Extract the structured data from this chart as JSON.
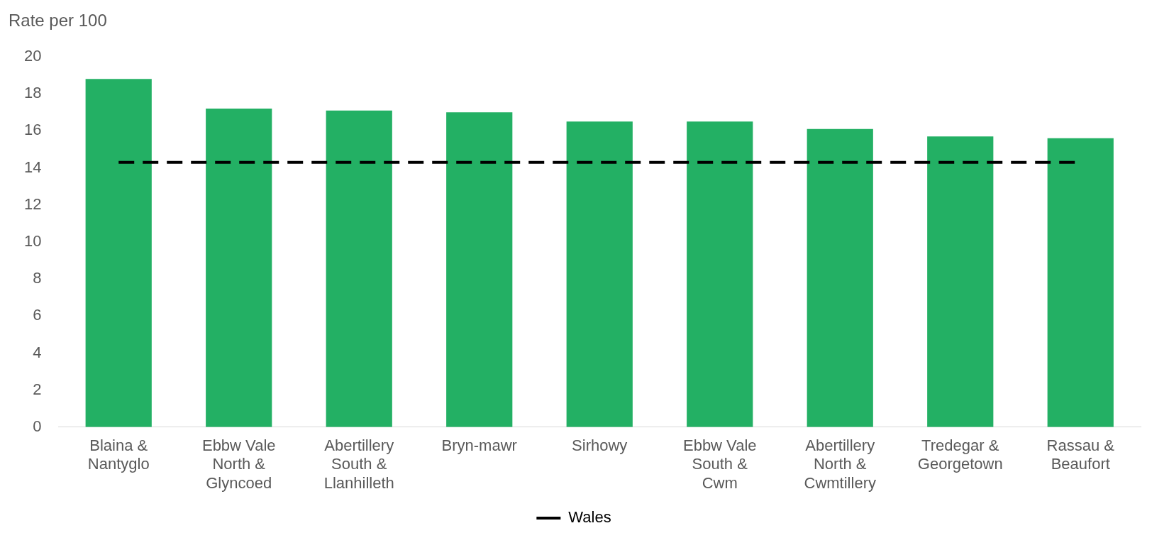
{
  "chart_data": {
    "type": "bar",
    "ylabel": "Rate per 100",
    "categories": [
      "Blaina & Nantyglo",
      "Ebbw Vale North & Glyncoed",
      "Abertillery South & Llanhilleth",
      "Bryn-mawr",
      "Sirhowy",
      "Ebbw Vale South & Cwm",
      "Abertillery North & Cwmtillery",
      "Tredegar & Georgetown",
      "Rassau & Beaufort"
    ],
    "series": [
      {
        "color": "#23b064",
        "values": [
          18.8,
          17.2,
          17.1,
          17.0,
          16.5,
          16.5,
          16.1,
          15.7,
          15.6
        ]
      },
      {
        "name": "Wales",
        "type": "line",
        "color": "#000000",
        "line_style": "dashed",
        "marker": "none",
        "values": [
          14.3,
          14.3,
          14.3,
          14.3,
          14.3,
          14.3,
          14.3,
          14.3,
          14.3
        ]
      }
    ],
    "ylim": [
      0,
      20
    ],
    "yticks": [
      0,
      2,
      4,
      6,
      8,
      10,
      12,
      14,
      16,
      18,
      20
    ],
    "grid": false,
    "legend": "bottom"
  }
}
